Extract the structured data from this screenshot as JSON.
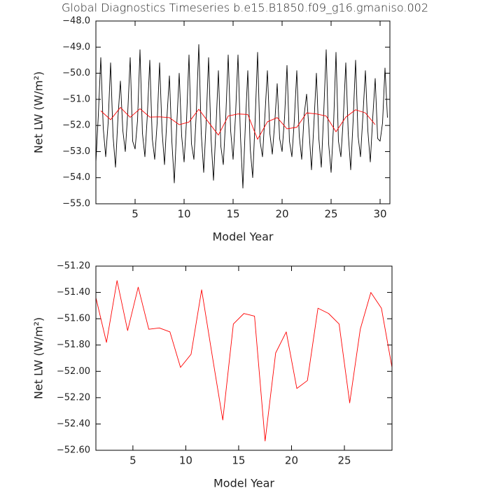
{
  "chart_data": [
    {
      "type": "line",
      "title": "Global Diagnostics Timeseries b.e15.B1850.f09_g16.gmaniso.002",
      "xlabel": "Model Year",
      "ylabel": "Net LW (W/m²)",
      "xlim": [
        1,
        31
      ],
      "xticks": [
        5,
        10,
        15,
        20,
        25,
        30
      ],
      "ylim": [
        -55,
        -48
      ],
      "yticks": [
        {
          "value": -48,
          "label": "−48.0"
        },
        {
          "value": -49,
          "label": "−49.0"
        },
        {
          "value": -50,
          "label": "−50.0"
        },
        {
          "value": -51,
          "label": "−51.0"
        },
        {
          "value": -52,
          "label": "−52.0"
        },
        {
          "value": -53,
          "label": "−53.0"
        },
        {
          "value": -54,
          "label": "−54.0"
        },
        {
          "value": -55,
          "label": "−55.0"
        }
      ],
      "series": [
        {
          "color": "#000000",
          "x": [
            1,
            1.25,
            1.5,
            1.75,
            2,
            2.25,
            2.5,
            2.75,
            3,
            3.25,
            3.5,
            3.75,
            4,
            4.25,
            4.5,
            4.75,
            5,
            5.25,
            5.5,
            5.75,
            6,
            6.25,
            6.5,
            6.75,
            7,
            7.25,
            7.5,
            7.75,
            8,
            8.25,
            8.5,
            8.75,
            9,
            9.25,
            9.5,
            9.75,
            10,
            10.25,
            10.5,
            10.75,
            11,
            11.25,
            11.5,
            11.75,
            12,
            12.25,
            12.5,
            12.75,
            13,
            13.25,
            13.5,
            13.75,
            14,
            14.25,
            14.5,
            14.75,
            15,
            15.25,
            15.5,
            15.75,
            16,
            16.25,
            16.5,
            16.75,
            17,
            17.25,
            17.5,
            17.75,
            18,
            18.25,
            18.5,
            18.75,
            19,
            19.25,
            19.5,
            19.75,
            20,
            20.25,
            20.5,
            20.75,
            21,
            21.25,
            21.5,
            21.75,
            22,
            22.25,
            22.5,
            22.75,
            23,
            23.25,
            23.5,
            23.75,
            24,
            24.25,
            24.5,
            24.75,
            25,
            25.25,
            25.5,
            25.75,
            26,
            26.25,
            26.5,
            26.75,
            27,
            27.25,
            27.5,
            27.75,
            28,
            28.25,
            28.5,
            28.75,
            29,
            29.25,
            29.5,
            29.75,
            30,
            30.25,
            30.5,
            30.75
          ],
          "values": [
            -53.4,
            -51.6,
            -49.4,
            -52.1,
            -53.2,
            -51.9,
            -49.6,
            -52.4,
            -53.6,
            -51.7,
            -50.3,
            -52.2,
            -53.0,
            -51.5,
            -49.4,
            -52.6,
            -52.9,
            -51.8,
            -49.1,
            -52.3,
            -53.2,
            -51.6,
            -49.5,
            -52.5,
            -53.3,
            -51.9,
            -49.6,
            -52.2,
            -53.5,
            -51.7,
            -50.1,
            -52.6,
            -54.2,
            -52.0,
            -50.0,
            -52.4,
            -53.4,
            -51.8,
            -49.3,
            -52.7,
            -53.3,
            -51.5,
            -48.9,
            -52.3,
            -53.8,
            -51.9,
            -49.4,
            -52.5,
            -54.1,
            -52.1,
            -49.9,
            -52.8,
            -53.5,
            -51.7,
            -49.3,
            -52.2,
            -53.3,
            -51.6,
            -49.3,
            -52.4,
            -54.4,
            -52.0,
            -49.9,
            -52.9,
            -54.0,
            -51.8,
            -49.2,
            -52.6,
            -53.2,
            -51.6,
            -49.9,
            -52.3,
            -53.1,
            -51.9,
            -50.4,
            -52.5,
            -53.0,
            -51.7,
            -49.7,
            -52.6,
            -53.2,
            -51.8,
            -49.9,
            -52.4,
            -53.3,
            -51.6,
            -50.8,
            -52.2,
            -53.7,
            -51.9,
            -50.0,
            -52.5,
            -53.6,
            -51.5,
            -49.1,
            -52.7,
            -53.8,
            -52.0,
            -49.2,
            -52.6,
            -53.2,
            -51.7,
            -49.6,
            -52.3,
            -53.7,
            -51.8,
            -49.5,
            -52.4,
            -53.2,
            -51.6,
            -49.9,
            -52.2,
            -53.4,
            -51.7,
            -50.2,
            -52.5,
            -52.6,
            -51.9,
            -49.8,
            -51.7
          ]
        },
        {
          "color": "#ff0000",
          "x": [
            1.5,
            2.5,
            3.5,
            4.5,
            5.5,
            6.5,
            7.5,
            8.5,
            9.5,
            10.5,
            11.5,
            12.5,
            13.5,
            14.5,
            15.5,
            16.5,
            17.5,
            18.5,
            19.5,
            20.5,
            21.5,
            22.5,
            23.5,
            24.5,
            25.5,
            26.5,
            27.5,
            28.5,
            29.5
          ],
          "values": [
            -51.44,
            -51.78,
            -51.31,
            -51.69,
            -51.36,
            -51.68,
            -51.67,
            -51.7,
            -51.97,
            -51.87,
            -51.38,
            -51.88,
            -52.37,
            -51.64,
            -51.56,
            -51.58,
            -52.53,
            -51.86,
            -51.7,
            -52.13,
            -52.07,
            -51.52,
            -51.56,
            -51.64,
            -52.24,
            -51.68,
            -51.4,
            -51.52,
            -51.97
          ]
        }
      ]
    },
    {
      "type": "line",
      "xlabel": "Model Year",
      "ylabel": "Net LW (W/m²)",
      "xlim": [
        1.5,
        29.5
      ],
      "xticks": [
        5,
        10,
        15,
        20,
        25
      ],
      "ylim": [
        -52.6,
        -51.2
      ],
      "yticks": [
        {
          "value": -51.2,
          "label": "−51.20"
        },
        {
          "value": -51.4,
          "label": "−51.40"
        },
        {
          "value": -51.6,
          "label": "−51.60"
        },
        {
          "value": -51.8,
          "label": "−51.80"
        },
        {
          "value": -52.0,
          "label": "−52.00"
        },
        {
          "value": -52.2,
          "label": "−52.20"
        },
        {
          "value": -52.4,
          "label": "−52.40"
        },
        {
          "value": -52.6,
          "label": "−52.60"
        }
      ],
      "series": [
        {
          "color": "#ff0000",
          "x": [
            1.5,
            2.5,
            3.5,
            4.5,
            5.5,
            6.5,
            7.5,
            8.5,
            9.5,
            10.5,
            11.5,
            12.5,
            13.5,
            14.5,
            15.5,
            16.5,
            17.5,
            18.5,
            19.5,
            20.5,
            21.5,
            22.5,
            23.5,
            24.5,
            25.5,
            26.5,
            27.5,
            28.5,
            29.5
          ],
          "values": [
            -51.44,
            -51.78,
            -51.31,
            -51.69,
            -51.36,
            -51.68,
            -51.67,
            -51.7,
            -51.97,
            -51.87,
            -51.38,
            -51.88,
            -52.37,
            -51.64,
            -51.56,
            -51.58,
            -52.53,
            -51.86,
            -51.7,
            -52.13,
            -52.07,
            -51.52,
            -51.56,
            -51.64,
            -52.24,
            -51.68,
            -51.4,
            -51.52,
            -51.97
          ]
        }
      ]
    }
  ]
}
